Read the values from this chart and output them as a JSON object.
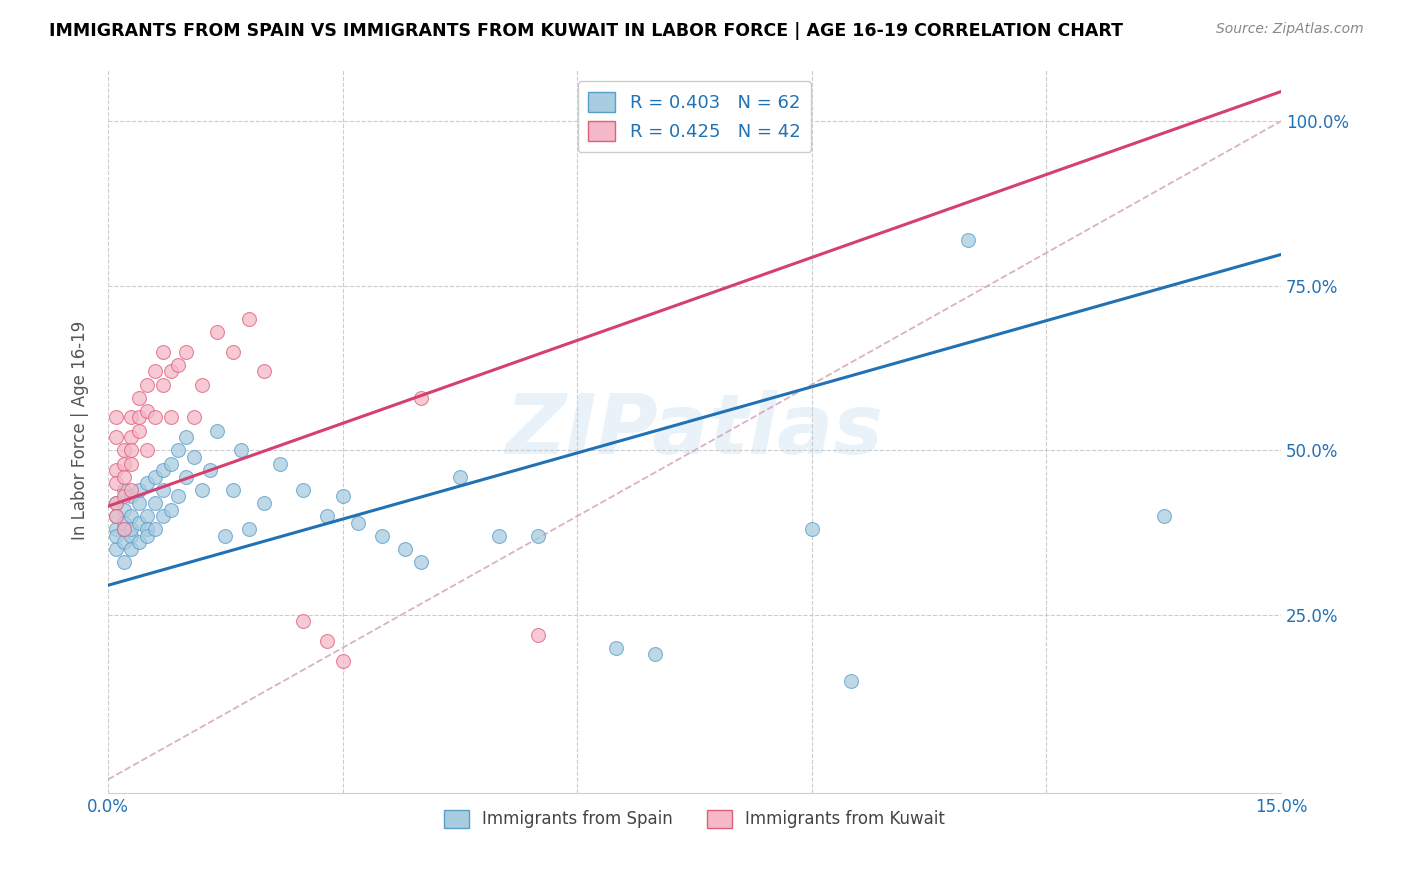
{
  "title": "IMMIGRANTS FROM SPAIN VS IMMIGRANTS FROM KUWAIT IN LABOR FORCE | AGE 16-19 CORRELATION CHART",
  "source": "Source: ZipAtlas.com",
  "ylabel": "In Labor Force | Age 16-19",
  "xlim": [
    0.0,
    0.15
  ],
  "ylim": [
    -0.02,
    1.08
  ],
  "x_tick_positions": [
    0.0,
    0.03,
    0.06,
    0.09,
    0.12,
    0.15
  ],
  "x_tick_labels": [
    "0.0%",
    "",
    "",
    "",
    "",
    "15.0%"
  ],
  "y_tick_positions": [
    0.25,
    0.5,
    0.75,
    1.0
  ],
  "y_tick_labels": [
    "25.0%",
    "50.0%",
    "75.0%",
    "100.0%"
  ],
  "legend_line1": "R = 0.403   N = 62",
  "legend_line2": "R = 0.425   N = 42",
  "color_spain_fill": "#a8cce0",
  "color_spain_edge": "#5b9ec9",
  "color_spain_line": "#2171b5",
  "color_kuwait_fill": "#f4b8c8",
  "color_kuwait_edge": "#e0607a",
  "color_kuwait_line": "#d44070",
  "color_diag": "#d0a0b0",
  "color_grid": "#cccccc",
  "watermark": "ZIPatlas",
  "spain_intercept": 0.295,
  "spain_slope": 3.35,
  "kuwait_intercept": 0.415,
  "kuwait_slope": 4.2,
  "spain_x": [
    0.001,
    0.001,
    0.001,
    0.001,
    0.001,
    0.002,
    0.002,
    0.002,
    0.002,
    0.002,
    0.002,
    0.003,
    0.003,
    0.003,
    0.003,
    0.003,
    0.004,
    0.004,
    0.004,
    0.004,
    0.005,
    0.005,
    0.005,
    0.005,
    0.006,
    0.006,
    0.006,
    0.007,
    0.007,
    0.007,
    0.008,
    0.008,
    0.009,
    0.009,
    0.01,
    0.01,
    0.011,
    0.012,
    0.013,
    0.014,
    0.015,
    0.016,
    0.017,
    0.018,
    0.02,
    0.022,
    0.025,
    0.028,
    0.03,
    0.032,
    0.035,
    0.038,
    0.04,
    0.045,
    0.05,
    0.055,
    0.065,
    0.07,
    0.09,
    0.095,
    0.11,
    0.135
  ],
  "spain_y": [
    0.38,
    0.4,
    0.35,
    0.42,
    0.37,
    0.36,
    0.33,
    0.41,
    0.44,
    0.38,
    0.39,
    0.4,
    0.37,
    0.43,
    0.35,
    0.38,
    0.39,
    0.42,
    0.36,
    0.44,
    0.4,
    0.45,
    0.38,
    0.37,
    0.42,
    0.46,
    0.38,
    0.44,
    0.4,
    0.47,
    0.48,
    0.41,
    0.43,
    0.5,
    0.46,
    0.52,
    0.49,
    0.44,
    0.47,
    0.53,
    0.37,
    0.44,
    0.5,
    0.38,
    0.42,
    0.48,
    0.44,
    0.4,
    0.43,
    0.39,
    0.37,
    0.35,
    0.33,
    0.46,
    0.37,
    0.37,
    0.2,
    0.19,
    0.38,
    0.15,
    0.82,
    0.4
  ],
  "kuwait_x": [
    0.001,
    0.001,
    0.001,
    0.001,
    0.001,
    0.001,
    0.002,
    0.002,
    0.002,
    0.002,
    0.002,
    0.003,
    0.003,
    0.003,
    0.003,
    0.003,
    0.004,
    0.004,
    0.004,
    0.005,
    0.005,
    0.005,
    0.006,
    0.006,
    0.007,
    0.007,
    0.008,
    0.008,
    0.009,
    0.01,
    0.011,
    0.012,
    0.014,
    0.016,
    0.018,
    0.02,
    0.025,
    0.028,
    0.03,
    0.04,
    0.055,
    0.065
  ],
  "kuwait_y": [
    0.42,
    0.47,
    0.45,
    0.4,
    0.52,
    0.55,
    0.5,
    0.48,
    0.43,
    0.46,
    0.38,
    0.52,
    0.55,
    0.48,
    0.5,
    0.44,
    0.58,
    0.53,
    0.55,
    0.56,
    0.6,
    0.5,
    0.62,
    0.55,
    0.6,
    0.65,
    0.62,
    0.55,
    0.63,
    0.65,
    0.55,
    0.6,
    0.68,
    0.65,
    0.7,
    0.62,
    0.24,
    0.21,
    0.18,
    0.58,
    0.22,
    0.97
  ]
}
